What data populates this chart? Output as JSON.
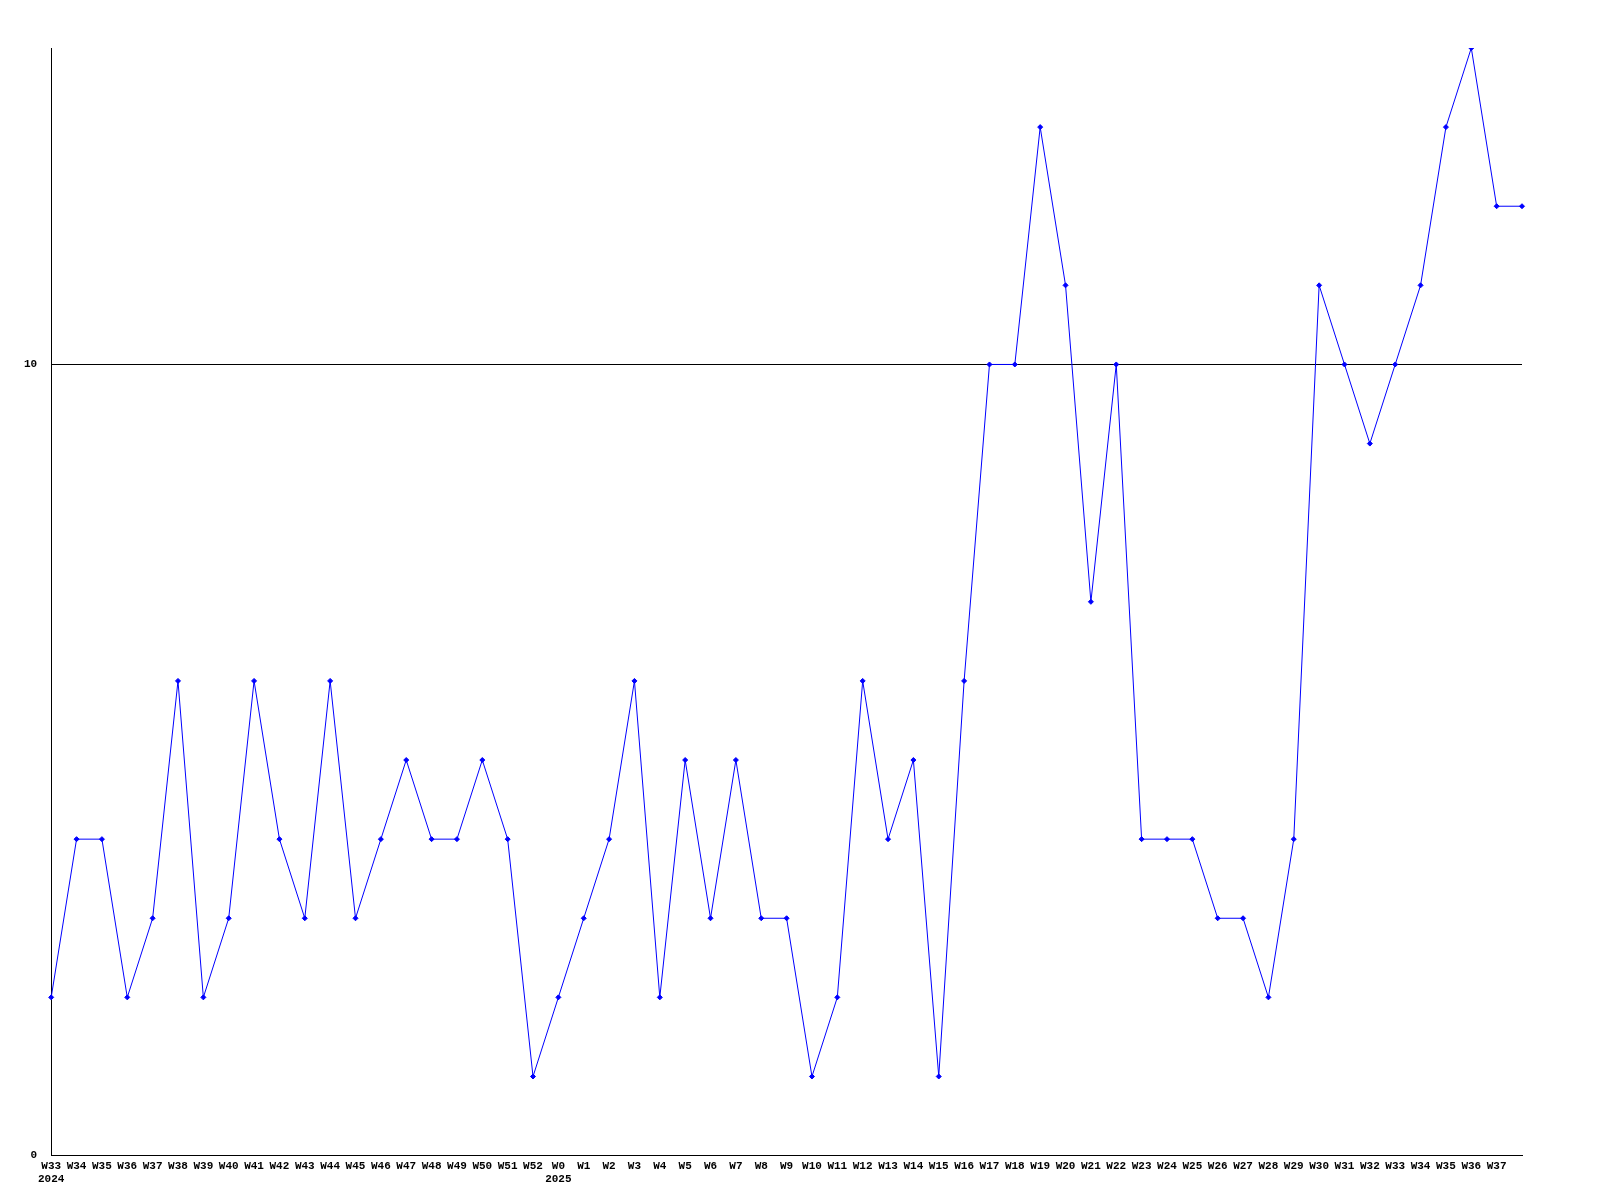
{
  "chart_data": {
    "type": "line",
    "categories": [
      "W33\n2024",
      "W34",
      "W35",
      "W36",
      "W37",
      "W38",
      "W39",
      "W40",
      "W41",
      "W42",
      "W43",
      "W44",
      "W45",
      "W46",
      "W47",
      "W48",
      "W49",
      "W50",
      "W51",
      "W52",
      "W0\n2025",
      "W1",
      "W2",
      "W3",
      "W4",
      "W5",
      "W6",
      "W7",
      "W8",
      "W9",
      "W10",
      "W11",
      "W12",
      "W13",
      "W14",
      "W15",
      "W16",
      "W17",
      "W18",
      "W19",
      "W20",
      "W21",
      "W22",
      "W23",
      "W24",
      "W25",
      "W26",
      "W27",
      "W28",
      "W29",
      "W30",
      "W31",
      "W32",
      "W33",
      "W34",
      "W35",
      "W36",
      "W37",
      null
    ],
    "series": [
      {
        "color": "#0000ff",
        "values": [
          2,
          4,
          4,
          2,
          3,
          6,
          2,
          3,
          6,
          4,
          3,
          6,
          3,
          4,
          5,
          4,
          4,
          5,
          4,
          1,
          2,
          3,
          4,
          6,
          2,
          5,
          3,
          5,
          3,
          3,
          1,
          2,
          6,
          4,
          5,
          1,
          6,
          10,
          10,
          13,
          11,
          7,
          10,
          4,
          4,
          4,
          3,
          3,
          2,
          4,
          11,
          10,
          9,
          10,
          11,
          13,
          14,
          12,
          12
        ]
      }
    ],
    "ylim": [
      0,
      14
    ],
    "yticks": [
      0,
      10
    ],
    "grid": "y",
    "legend": false,
    "marker": "diamond",
    "line_style": "solid"
  }
}
